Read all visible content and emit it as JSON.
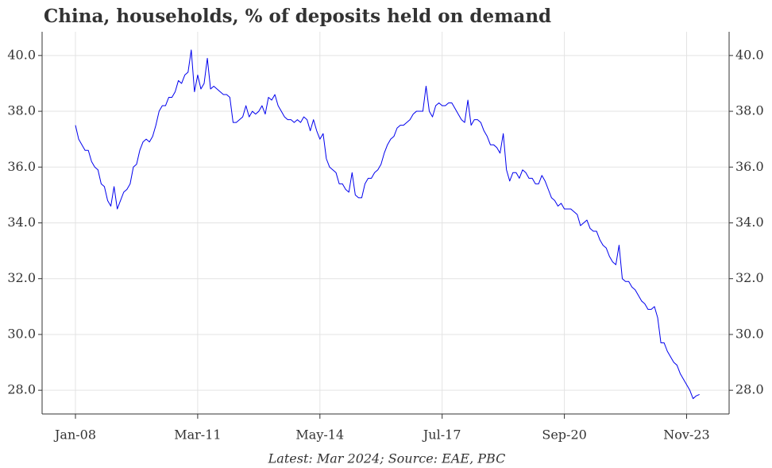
{
  "chart_data": {
    "type": "line",
    "title": "China, households, % of deposits held on demand",
    "note": "Latest: Mar 2024; Source: EAE, PBC",
    "x": [
      "Jan-08",
      "Feb-08",
      "Mar-08",
      "Apr-08",
      "May-08",
      "Jun-08",
      "Jul-08",
      "Aug-08",
      "Sep-08",
      "Oct-08",
      "Nov-08",
      "Dec-08",
      "Jan-09",
      "Feb-09",
      "Mar-09",
      "Apr-09",
      "May-09",
      "Jun-09",
      "Jul-09",
      "Aug-09",
      "Sep-09",
      "Oct-09",
      "Nov-09",
      "Dec-09",
      "Jan-10",
      "Feb-10",
      "Mar-10",
      "Apr-10",
      "May-10",
      "Jun-10",
      "Jul-10",
      "Aug-10",
      "Sep-10",
      "Oct-10",
      "Nov-10",
      "Dec-10",
      "Jan-11",
      "Feb-11",
      "Mar-11",
      "Apr-11",
      "May-11",
      "Jun-11",
      "Jul-11",
      "Aug-11",
      "Sep-11",
      "Oct-11",
      "Nov-11",
      "Dec-11",
      "Jan-12",
      "Feb-12",
      "Mar-12",
      "Apr-12",
      "May-12",
      "Jun-12",
      "Jul-12",
      "Aug-12",
      "Sep-12",
      "Oct-12",
      "Nov-12",
      "Dec-12",
      "Jan-13",
      "Feb-13",
      "Mar-13",
      "Apr-13",
      "May-13",
      "Jun-13",
      "Jul-13",
      "Aug-13",
      "Sep-13",
      "Oct-13",
      "Nov-13",
      "Dec-13",
      "Jan-14",
      "Feb-14",
      "Mar-14",
      "Apr-14",
      "May-14",
      "Jun-14",
      "Jul-14",
      "Aug-14",
      "Sep-14",
      "Oct-14",
      "Nov-14",
      "Dec-14",
      "Jan-15",
      "Feb-15",
      "Mar-15",
      "Apr-15",
      "May-15",
      "Jun-15",
      "Jul-15",
      "Aug-15",
      "Sep-15",
      "Oct-15",
      "Nov-15",
      "Dec-15",
      "Jan-16",
      "Feb-16",
      "Mar-16",
      "Apr-16",
      "May-16",
      "Jun-16",
      "Jul-16",
      "Aug-16",
      "Sep-16",
      "Oct-16",
      "Nov-16",
      "Dec-16",
      "Jan-17",
      "Feb-17",
      "Mar-17",
      "Apr-17",
      "May-17",
      "Jun-17",
      "Jul-17",
      "Aug-17",
      "Sep-17",
      "Oct-17",
      "Nov-17",
      "Dec-17",
      "Jan-18",
      "Feb-18",
      "Mar-18",
      "Apr-18",
      "May-18",
      "Jun-18",
      "Jul-18",
      "Aug-18",
      "Sep-18",
      "Oct-18",
      "Nov-18",
      "Dec-18",
      "Jan-19",
      "Feb-19",
      "Mar-19",
      "Apr-19",
      "May-19",
      "Jun-19",
      "Jul-19",
      "Aug-19",
      "Sep-19",
      "Oct-19",
      "Nov-19",
      "Dec-19",
      "Jan-20",
      "Feb-20",
      "Mar-20",
      "Apr-20",
      "May-20",
      "Jun-20",
      "Jul-20",
      "Aug-20",
      "Sep-20",
      "Oct-20",
      "Nov-20",
      "Dec-20",
      "Jan-21",
      "Feb-21",
      "Mar-21",
      "Apr-21",
      "May-21",
      "Jun-21",
      "Jul-21",
      "Aug-21",
      "Sep-21",
      "Oct-21",
      "Nov-21",
      "Dec-21",
      "Jan-22",
      "Feb-22",
      "Mar-22",
      "Apr-22",
      "May-22",
      "Jun-22",
      "Jul-22",
      "Aug-22",
      "Sep-22",
      "Oct-22",
      "Nov-22",
      "Dec-22",
      "Jan-23",
      "Feb-23",
      "Mar-23",
      "Apr-23",
      "May-23",
      "Jun-23",
      "Jul-23",
      "Aug-23",
      "Sep-23",
      "Oct-23",
      "Nov-23",
      "Dec-23",
      "Jan-24",
      "Feb-24",
      "Mar-24"
    ],
    "series": [
      {
        "color": "#0000ee",
        "values": [
          37.5,
          37.0,
          36.8,
          36.6,
          36.6,
          36.2,
          36.0,
          35.9,
          35.4,
          35.3,
          34.8,
          34.6,
          35.3,
          34.5,
          34.8,
          35.1,
          35.2,
          35.4,
          36.0,
          36.1,
          36.6,
          36.9,
          37.0,
          36.9,
          37.1,
          37.5,
          38.0,
          38.2,
          38.2,
          38.5,
          38.5,
          38.7,
          39.1,
          39.0,
          39.3,
          39.4,
          40.2,
          38.7,
          39.3,
          38.8,
          39.0,
          39.9,
          38.8,
          38.9,
          38.8,
          38.7,
          38.6,
          38.6,
          38.5,
          37.6,
          37.6,
          37.7,
          37.8,
          38.2,
          37.8,
          38.0,
          37.9,
          38.0,
          38.2,
          37.9,
          38.5,
          38.4,
          38.6,
          38.2,
          38.0,
          37.8,
          37.7,
          37.7,
          37.6,
          37.7,
          37.6,
          37.8,
          37.7,
          37.3,
          37.7,
          37.3,
          37.0,
          37.2,
          36.3,
          36.0,
          35.9,
          35.8,
          35.4,
          35.4,
          35.2,
          35.1,
          35.8,
          35.0,
          34.9,
          34.9,
          35.4,
          35.6,
          35.6,
          35.8,
          35.9,
          36.1,
          36.5,
          36.8,
          37.0,
          37.1,
          37.4,
          37.5,
          37.5,
          37.6,
          37.7,
          37.9,
          38.0,
          38.0,
          38.0,
          38.9,
          38.0,
          37.8,
          38.2,
          38.3,
          38.2,
          38.2,
          38.3,
          38.3,
          38.1,
          37.9,
          37.7,
          37.6,
          38.4,
          37.5,
          37.7,
          37.7,
          37.6,
          37.3,
          37.1,
          36.8,
          36.8,
          36.7,
          36.5,
          37.2,
          35.9,
          35.5,
          35.8,
          35.8,
          35.6,
          35.9,
          35.8,
          35.6,
          35.6,
          35.4,
          35.4,
          35.7,
          35.5,
          35.2,
          34.9,
          34.8,
          34.6,
          34.7,
          34.5,
          34.5,
          34.5,
          34.4,
          34.3,
          33.9,
          34.0,
          34.1,
          33.8,
          33.7,
          33.7,
          33.4,
          33.2,
          33.1,
          32.8,
          32.6,
          32.5,
          33.2,
          32.0,
          31.9,
          31.9,
          31.7,
          31.6,
          31.4,
          31.2,
          31.1,
          30.9,
          30.9,
          31.0,
          30.6,
          29.7,
          29.7,
          29.4,
          29.2,
          29.0,
          28.9,
          28.6,
          28.4,
          28.2,
          28.0,
          27.7,
          27.8,
          27.85
        ]
      }
    ],
    "xticks": [
      "Jan-08",
      "Mar-11",
      "May-14",
      "Jul-17",
      "Sep-20",
      "Nov-23"
    ],
    "ylim": [
      27.15,
      40.85
    ],
    "yticks": [
      {
        "value": 28,
        "label": "28.0"
      },
      {
        "value": 30,
        "label": "30.0"
      },
      {
        "value": 32,
        "label": "32.0"
      },
      {
        "value": 34,
        "label": "34.0"
      },
      {
        "value": 36,
        "label": "36.0"
      },
      {
        "value": 38,
        "label": "38.0"
      },
      {
        "value": 40,
        "label": "40.0"
      }
    ],
    "grid": true
  }
}
